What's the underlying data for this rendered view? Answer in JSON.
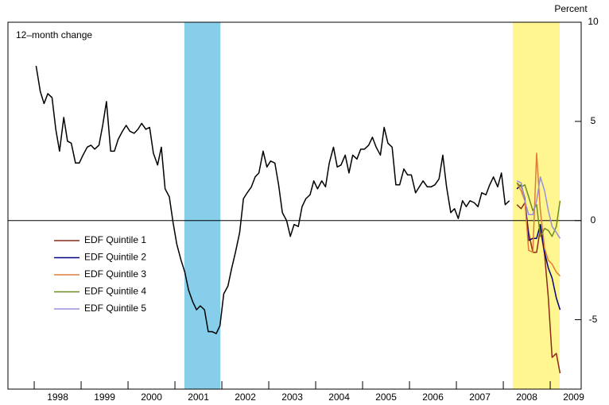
{
  "chart_data": {
    "type": "line",
    "y_label": "Percent",
    "annotation": "12–month change",
    "xlim": [
      1997.44,
      2009.66
    ],
    "ylim": [
      -8.5,
      10
    ],
    "yticks": [
      -5,
      0,
      5,
      10
    ],
    "xticks": [
      {
        "value": 1998.5,
        "label": "1998"
      },
      {
        "value": 1999.5,
        "label": "1999"
      },
      {
        "value": 2000.5,
        "label": "2000"
      },
      {
        "value": 2001.5,
        "label": "2001"
      },
      {
        "value": 2002.5,
        "label": "2002"
      },
      {
        "value": 2003.5,
        "label": "2003"
      },
      {
        "value": 2004.5,
        "label": "2004"
      },
      {
        "value": 2005.5,
        "label": "2005"
      },
      {
        "value": 2006.5,
        "label": "2006"
      },
      {
        "value": 2007.5,
        "label": "2007"
      },
      {
        "value": 2008.5,
        "label": "2008"
      },
      {
        "value": 2009.5,
        "label": "2009"
      }
    ],
    "xminorticks": [
      1998,
      1999,
      2000,
      2001,
      2002,
      2003,
      2004,
      2005,
      2006,
      2007,
      2008,
      2009
    ],
    "shaded_regions": [
      {
        "start": 2001.2,
        "end": 2001.97,
        "color": "#87ceeb"
      },
      {
        "start": 2008.2,
        "end": 2009.2,
        "color": "#fff68f"
      }
    ],
    "legend": "center-left",
    "series": [
      {
        "color": "#000000",
        "x": [
          1998.04,
          1998.13,
          1998.21,
          1998.29,
          1998.38,
          1998.46,
          1998.54,
          1998.63,
          1998.71,
          1998.79,
          1998.88,
          1998.96,
          1999.04,
          1999.13,
          1999.21,
          1999.29,
          1999.38,
          1999.46,
          1999.54,
          1999.63,
          1999.71,
          1999.79,
          1999.88,
          1999.96,
          2000.04,
          2000.13,
          2000.21,
          2000.29,
          2000.38,
          2000.46,
          2000.54,
          2000.63,
          2000.71,
          2000.79,
          2000.88,
          2000.96,
          2001.04,
          2001.13,
          2001.21,
          2001.29,
          2001.38,
          2001.46,
          2001.54,
          2001.63,
          2001.71,
          2001.79,
          2001.88,
          2001.96,
          2002.04,
          2002.13,
          2002.21,
          2002.29,
          2002.38,
          2002.46,
          2002.54,
          2002.63,
          2002.71,
          2002.79,
          2002.88,
          2002.96,
          2003.04,
          2003.13,
          2003.21,
          2003.29,
          2003.38,
          2003.46,
          2003.54,
          2003.63,
          2003.71,
          2003.79,
          2003.88,
          2003.96,
          2004.04,
          2004.13,
          2004.21,
          2004.29,
          2004.38,
          2004.46,
          2004.54,
          2004.63,
          2004.71,
          2004.79,
          2004.88,
          2004.96,
          2005.04,
          2005.13,
          2005.21,
          2005.29,
          2005.38,
          2005.46,
          2005.54,
          2005.63,
          2005.71,
          2005.79,
          2005.88,
          2005.96,
          2006.04,
          2006.13,
          2006.21,
          2006.29,
          2006.38,
          2006.46,
          2006.54,
          2006.63,
          2006.71,
          2006.79,
          2006.88,
          2006.96,
          2007.04,
          2007.13,
          2007.21,
          2007.29,
          2007.38,
          2007.46,
          2007.54,
          2007.63,
          2007.71,
          2007.79,
          2007.88,
          2007.96,
          2008.04,
          2008.13
        ],
        "values": [
          7.8,
          6.5,
          5.9,
          6.4,
          6.2,
          4.6,
          3.5,
          5.2,
          4.0,
          3.9,
          2.9,
          2.9,
          3.3,
          3.7,
          3.8,
          3.6,
          3.8,
          4.8,
          6.0,
          3.5,
          3.5,
          4.1,
          4.5,
          4.8,
          4.5,
          4.4,
          4.6,
          4.9,
          4.6,
          4.7,
          3.4,
          2.8,
          3.7,
          1.6,
          1.2,
          -0.1,
          -1.2,
          -2.0,
          -2.6,
          -3.5,
          -4.1,
          -4.5,
          -4.3,
          -4.5,
          -5.6,
          -5.6,
          -5.7,
          -5.3,
          -3.7,
          -3.3,
          -2.4,
          -1.6,
          -0.6,
          1.1,
          1.4,
          1.7,
          2.2,
          2.4,
          3.5,
          2.7,
          3.0,
          2.9,
          1.8,
          0.4,
          0,
          -0.8,
          -0.2,
          -0.3,
          0.7,
          1.1,
          1.3,
          2.0,
          1.6,
          2.0,
          1.7,
          2.9,
          3.7,
          2.7,
          2.8,
          3.3,
          2.4,
          3.3,
          3.1,
          3.6,
          3.6,
          3.8,
          4.2,
          3.7,
          3.3,
          4.7,
          3.9,
          3.7,
          1.8,
          1.8,
          2.6,
          2.3,
          2.3,
          1.4,
          1.7,
          2.0,
          1.7,
          1.7,
          1.8,
          2.1,
          3.3,
          1.7,
          0.4,
          0.6,
          0.1,
          1.0,
          0.7,
          1.0,
          0.9,
          0.7,
          1.4,
          1.3,
          1.8,
          2.2,
          1.7,
          2.4,
          0.8,
          1.0
        ]
      },
      {
        "name": "EDF Quintile 1",
        "color": "#8b2a1a",
        "x": [
          2008.29,
          2008.38,
          2008.46,
          2008.54,
          2008.63,
          2008.71,
          2008.79,
          2008.88,
          2008.96,
          2009.04,
          2009.13,
          2009.21
        ],
        "values": [
          0.8,
          0.6,
          0.9,
          -0.6,
          -1.6,
          -1.6,
          -0.4,
          -1.7,
          -3.9,
          -6.9,
          -6.7,
          -7.7
        ]
      },
      {
        "name": "EDF Quintile 2",
        "color": "#000080",
        "x": [
          2008.29,
          2008.38,
          2008.46,
          2008.54,
          2008.63,
          2008.71,
          2008.79,
          2008.88,
          2008.96,
          2009.04,
          2009.13,
          2009.21
        ],
        "values": [
          1.6,
          1.8,
          1.1,
          -1.0,
          -0.9,
          -0.9,
          -0.2,
          -1.6,
          -2.4,
          -2.9,
          -3.9,
          -4.5
        ]
      },
      {
        "name": "EDF Quintile 3",
        "color": "#e07b39",
        "x": [
          2008.29,
          2008.38,
          2008.46,
          2008.54,
          2008.63,
          2008.71,
          2008.79,
          2008.88,
          2008.96,
          2009.04,
          2009.13,
          2009.21
        ],
        "values": [
          1.9,
          1.5,
          1.0,
          -1.5,
          -1.6,
          3.4,
          0.5,
          -1.4,
          -2.0,
          -2.2,
          -2.6,
          -2.8
        ]
      },
      {
        "name": "EDF Quintile 4",
        "color": "#6b8e23",
        "x": [
          2008.29,
          2008.38,
          2008.46,
          2008.54,
          2008.63,
          2008.71,
          2008.79,
          2008.88,
          2008.96,
          2009.04,
          2009.13,
          2009.21
        ],
        "values": [
          1.9,
          1.7,
          1.8,
          1.2,
          0.5,
          0.8,
          -0.8,
          -0.4,
          -0.5,
          -0.8,
          -0.3,
          1.0
        ]
      },
      {
        "name": "EDF Quintile 5",
        "color": "#9a8fdc",
        "x": [
          2008.29,
          2008.38,
          2008.46,
          2008.54,
          2008.63,
          2008.71,
          2008.79,
          2008.88,
          2008.96,
          2009.04,
          2009.13,
          2009.21
        ],
        "values": [
          2.0,
          1.9,
          1.0,
          0.3,
          0.3,
          1.0,
          2.2,
          1.5,
          0.5,
          -0.3,
          -0.6,
          -0.9
        ]
      }
    ]
  }
}
